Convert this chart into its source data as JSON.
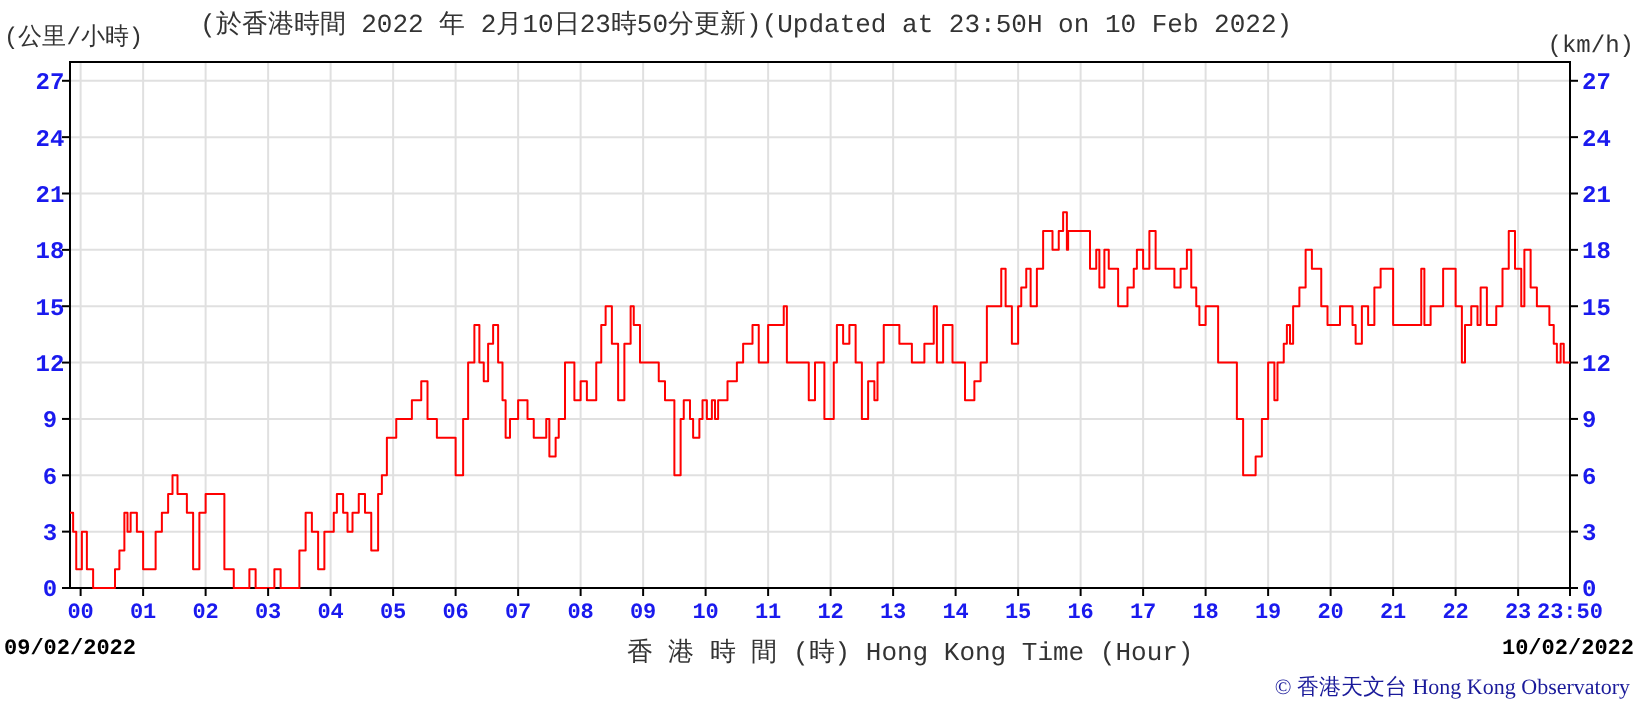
{
  "chart_data": {
    "type": "step",
    "title": "(於香港時間 2022 年 2月10日23時50分更新)(Updated at 23:50H on 10 Feb 2022)",
    "ylabel": "(公里/小時)",
    "y2label": "(km/h)",
    "xlabel": "香 港 時 間 (時) Hong Kong Time (Hour)",
    "annotations": [
      "09/02/2022",
      "10/02/2022",
      "© 香港天文台 Hong Kong Observatory"
    ],
    "xlim": [
      -0.17,
      23.83
    ],
    "xticks": [
      {
        "value": 0,
        "label": "00"
      },
      {
        "value": 1,
        "label": "01"
      },
      {
        "value": 2,
        "label": "02"
      },
      {
        "value": 3,
        "label": "03"
      },
      {
        "value": 4,
        "label": "04"
      },
      {
        "value": 5,
        "label": "05"
      },
      {
        "value": 6,
        "label": "06"
      },
      {
        "value": 7,
        "label": "07"
      },
      {
        "value": 8,
        "label": "08"
      },
      {
        "value": 9,
        "label": "09"
      },
      {
        "value": 10,
        "label": "10"
      },
      {
        "value": 11,
        "label": "11"
      },
      {
        "value": 12,
        "label": "12"
      },
      {
        "value": 13,
        "label": "13"
      },
      {
        "value": 14,
        "label": "14"
      },
      {
        "value": 15,
        "label": "15"
      },
      {
        "value": 16,
        "label": "16"
      },
      {
        "value": 17,
        "label": "17"
      },
      {
        "value": 18,
        "label": "18"
      },
      {
        "value": 19,
        "label": "19"
      },
      {
        "value": 20,
        "label": "20"
      },
      {
        "value": 21,
        "label": "21"
      },
      {
        "value": 22,
        "label": "22"
      },
      {
        "value": 23,
        "label": "23"
      },
      {
        "value": 23.83,
        "label": "23:50"
      }
    ],
    "ylim": [
      0,
      28
    ],
    "yticks": [
      0,
      3,
      6,
      9,
      12,
      15,
      18,
      21,
      24,
      27
    ],
    "y2lim": [
      0,
      28
    ],
    "y2ticks": [
      0,
      3,
      6,
      9,
      12,
      15,
      18,
      21,
      24,
      27
    ],
    "grid": true,
    "series": [
      {
        "color": "#ff0000",
        "x": [
          -0.17,
          -0.12,
          -0.07,
          0.02,
          0.1,
          0.2,
          0.55,
          0.62,
          0.7,
          0.75,
          0.8,
          0.9,
          1.0,
          1.2,
          1.3,
          1.4,
          1.47,
          1.55,
          1.7,
          1.8,
          1.9,
          2.0,
          2.3,
          2.45,
          2.7,
          2.8,
          3.1,
          3.2,
          3.5,
          3.6,
          3.7,
          3.8,
          3.9,
          4.05,
          4.1,
          4.2,
          4.27,
          4.35,
          4.45,
          4.55,
          4.65,
          4.76,
          4.82,
          4.9,
          5.05,
          5.3,
          5.45,
          5.55,
          5.7,
          6.0,
          6.12,
          6.2,
          6.3,
          6.38,
          6.45,
          6.52,
          6.6,
          6.68,
          6.75,
          6.8,
          6.87,
          7.0,
          7.15,
          7.25,
          7.45,
          7.5,
          7.6,
          7.65,
          7.75,
          7.9,
          8.0,
          8.1,
          8.25,
          8.33,
          8.4,
          8.5,
          8.6,
          8.7,
          8.8,
          8.85,
          8.95,
          9.25,
          9.35,
          9.5,
          9.6,
          9.65,
          9.75,
          9.8,
          9.9,
          9.95,
          10.02,
          10.1,
          10.15,
          10.2,
          10.35,
          10.5,
          10.6,
          10.75,
          10.85,
          11.0,
          11.25,
          11.3,
          11.65,
          11.75,
          11.9,
          12.05,
          12.1,
          12.2,
          12.3,
          12.4,
          12.5,
          12.6,
          12.7,
          12.75,
          12.85,
          13.1,
          13.3,
          13.5,
          13.65,
          13.7,
          13.8,
          13.95,
          14.15,
          14.3,
          14.4,
          14.5,
          14.73,
          14.8,
          14.9,
          15.0,
          15.05,
          15.13,
          15.2,
          15.3,
          15.4,
          15.55,
          15.65,
          15.72,
          15.78,
          15.8,
          16.15,
          16.25,
          16.3,
          16.38,
          16.45,
          16.6,
          16.75,
          16.85,
          16.9,
          17.0,
          17.1,
          17.2,
          17.5,
          17.6,
          17.7,
          17.77,
          17.85,
          17.9,
          18.0,
          18.2,
          18.5,
          18.6,
          18.8,
          18.9,
          19.0,
          19.1,
          19.15,
          19.25,
          19.3,
          19.35,
          19.4,
          19.5,
          19.6,
          19.7,
          19.85,
          19.95,
          20.15,
          20.35,
          20.4,
          20.5,
          20.6,
          20.7,
          20.8,
          21.0,
          21.45,
          21.5,
          21.6,
          21.8,
          22.0,
          22.1,
          22.15,
          22.25,
          22.35,
          22.4,
          22.5,
          22.65,
          22.75,
          22.85,
          22.95,
          23.05,
          23.1,
          23.2,
          23.3,
          23.5,
          23.57,
          23.62,
          23.68,
          23.73,
          23.83
        ],
        "values": [
          4,
          3,
          1,
          3,
          1,
          0,
          1,
          2,
          4,
          3,
          4,
          3,
          1,
          3,
          4,
          5,
          6,
          5,
          4,
          1,
          4,
          5,
          1,
          0,
          1,
          0,
          1,
          0,
          2,
          4,
          3,
          1,
          3,
          4,
          5,
          4,
          3,
          4,
          5,
          4,
          2,
          5,
          6,
          8,
          9,
          10,
          11,
          9,
          8,
          6,
          9,
          12,
          14,
          12,
          11,
          13,
          14,
          12,
          10,
          8,
          9,
          10,
          9,
          8,
          9,
          7,
          8,
          9,
          12,
          10,
          11,
          10,
          12,
          14,
          15,
          13,
          10,
          13,
          15,
          14,
          12,
          11,
          10,
          6,
          9,
          10,
          9,
          8,
          9,
          10,
          9,
          10,
          9,
          10,
          11,
          12,
          13,
          14,
          12,
          14,
          15,
          12,
          10,
          12,
          9,
          12,
          14,
          13,
          14,
          12,
          9,
          11,
          10,
          12,
          14,
          13,
          12,
          13,
          15,
          12,
          14,
          12,
          10,
          11,
          12,
          15,
          17,
          15,
          13,
          15,
          16,
          17,
          15,
          17,
          19,
          18,
          19,
          20,
          18,
          19,
          17,
          18,
          16,
          18,
          17,
          15,
          16,
          17,
          18,
          17,
          19,
          17,
          16,
          17,
          18,
          16,
          15,
          14,
          15,
          12,
          9,
          6,
          7,
          9,
          12,
          10,
          12,
          13,
          14,
          13,
          15,
          16,
          18,
          17,
          15,
          14,
          15,
          14,
          13,
          15,
          14,
          16,
          17,
          14,
          17,
          14,
          15,
          17,
          15,
          12,
          14,
          15,
          14,
          16,
          14,
          15,
          17,
          19,
          17,
          15,
          18,
          16,
          15,
          14,
          13,
          12,
          13,
          12,
          12
        ]
      }
    ]
  }
}
